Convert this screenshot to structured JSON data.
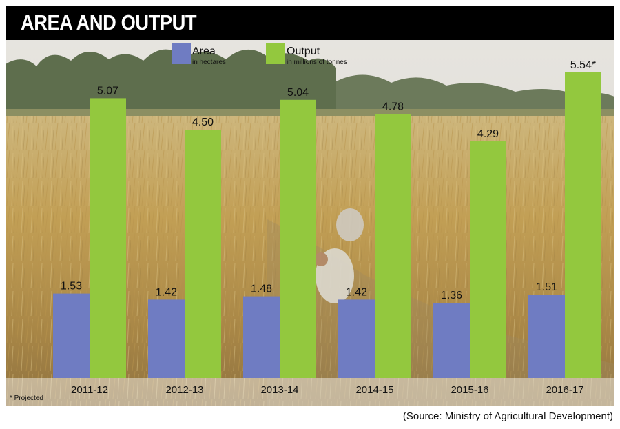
{
  "header": {
    "title": "AREA AND OUTPUT"
  },
  "legend": {
    "area_label": "Area",
    "area_sub": "in hectares",
    "output_label": "Output",
    "output_sub": "in millions of tonnes"
  },
  "footnote": "* Projected",
  "source": "(Source: Ministry of Agricultural Development)",
  "colors": {
    "area": "#6f7cc2",
    "output": "#93c83e",
    "title_bg": "#000000"
  },
  "chart_data": {
    "type": "bar",
    "title": "AREA AND OUTPUT",
    "categories": [
      "2011-12",
      "2012-13",
      "2013-14",
      "2014-15",
      "2015-16",
      "2016-17"
    ],
    "series": [
      {
        "name": "Area",
        "unit": "in hectares",
        "values": [
          1.53,
          1.42,
          1.48,
          1.42,
          1.36,
          1.51
        ],
        "labels": [
          "1.53",
          "1.42",
          "1.48",
          "1.42",
          "1.36",
          "1.51"
        ]
      },
      {
        "name": "Output",
        "unit": "in millions of tonnes",
        "values": [
          5.07,
          4.5,
          5.04,
          4.78,
          4.29,
          5.54
        ],
        "labels": [
          "5.07",
          "4.50",
          "5.04",
          "4.78",
          "4.29",
          "5.54*"
        ]
      }
    ],
    "ylim": [
      0,
      5.8
    ],
    "grid": false,
    "legend": "top-left"
  }
}
